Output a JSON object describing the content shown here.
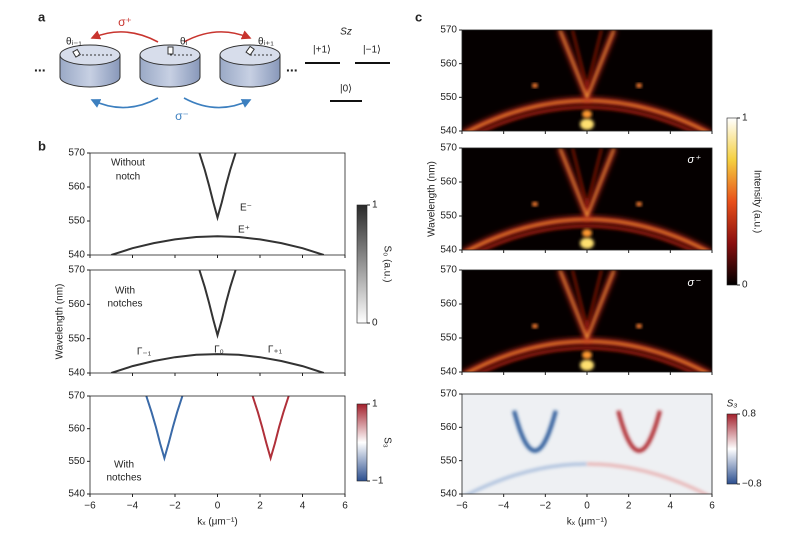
{
  "panels": [
    "a",
    "b",
    "c"
  ],
  "diagram": {
    "sigma_plus": "σ⁺",
    "sigma_minus": "σ⁻",
    "thetas": [
      "θᵢ₋₁",
      "θᵢ",
      "θᵢ₊₁"
    ],
    "ellipsis": "...",
    "sz": "Sz",
    "states": [
      "|+1⟩",
      "|−1⟩",
      "|0⟩"
    ]
  },
  "chart_data": [
    {
      "type": "line",
      "xlim": [
        -6,
        6
      ],
      "ylim": [
        540,
        570
      ],
      "xticks": [
        {
          "value": -6,
          "label": "−6"
        },
        {
          "value": -4,
          "label": "−4"
        },
        {
          "value": -2,
          "label": "−2"
        },
        0,
        2,
        4,
        6
      ],
      "yticks": [
        540,
        550,
        560,
        570
      ],
      "annotations": [
        "Without",
        "notch",
        "E⁻",
        "E⁺"
      ],
      "series": [
        {
          "color": "#333333",
          "x": [
            -0.85,
            -0.6,
            -0.4,
            -0.2,
            0,
            0.2,
            0.4,
            0.6,
            0.85
          ],
          "values": [
            570,
            565,
            560.5,
            555.5,
            551,
            555.5,
            560.5,
            565,
            570
          ]
        },
        {
          "color": "#333333",
          "x": [
            -5,
            -4,
            -3,
            -2,
            -1,
            0,
            1,
            2,
            3,
            4,
            5
          ],
          "values": [
            540,
            542,
            543.5,
            544.6,
            545.3,
            545.5,
            545.3,
            544.6,
            543.5,
            542,
            540
          ]
        }
      ],
      "colorbar": {
        "label": "S₀ (a.u.)",
        "ticks": [
          0,
          1
        ],
        "colors": [
          "#ffffff",
          "#2a2a2a"
        ]
      }
    },
    {
      "type": "line",
      "xlim": [
        -6,
        6
      ],
      "ylim": [
        540,
        570
      ],
      "xticks": [
        {
          "value": -6,
          "label": "−6"
        },
        {
          "value": -4,
          "label": "−4"
        },
        {
          "value": -2,
          "label": "−2"
        },
        0,
        2,
        4,
        6
      ],
      "yticks": [
        540,
        550,
        560,
        570
      ],
      "ylabel": "Wavelength (nm)",
      "annotations": [
        "With",
        "notches",
        "Γ₋₁",
        "Γ₀",
        "Γ₊₁"
      ],
      "series": [
        {
          "color": "#333333",
          "x": [
            -0.85,
            -0.6,
            -0.4,
            -0.2,
            0,
            0.2,
            0.4,
            0.6,
            0.85
          ],
          "values": [
            570,
            565,
            560.5,
            555.5,
            551,
            555.5,
            560.5,
            565,
            570
          ]
        },
        {
          "color": "#333333",
          "x": [
            -5,
            -4,
            -3,
            -2,
            -1,
            0,
            1,
            2,
            3,
            4,
            5
          ],
          "values": [
            540,
            542,
            543.5,
            544.6,
            545.3,
            545.5,
            545.3,
            544.6,
            543.5,
            542,
            540
          ]
        }
      ]
    },
    {
      "type": "line",
      "xlim": [
        -6,
        6
      ],
      "ylim": [
        540,
        570
      ],
      "xticks": [
        {
          "value": -6,
          "label": "−6"
        },
        {
          "value": -4,
          "label": "−4"
        },
        {
          "value": -2,
          "label": "−2"
        },
        0,
        2,
        4,
        6
      ],
      "yticks": [
        540,
        550,
        560,
        570
      ],
      "xlabel": "kₓ (μm⁻¹)",
      "annotations": [
        "With",
        "notches"
      ],
      "series": [
        {
          "color": "#3a6aa8",
          "x": [
            -3.35,
            -3.1,
            -2.9,
            -2.7,
            -2.5,
            -2.3,
            -2.1,
            -1.9,
            -1.65
          ],
          "values": [
            570,
            565,
            560.5,
            555.5,
            551,
            555.5,
            560.5,
            565,
            570
          ]
        },
        {
          "color": "#b0303a",
          "x": [
            1.65,
            1.9,
            2.1,
            2.3,
            2.5,
            2.7,
            2.9,
            3.1,
            3.35
          ],
          "values": [
            570,
            565,
            560.5,
            555.5,
            551,
            555.5,
            560.5,
            565,
            570
          ]
        }
      ],
      "colorbar": {
        "label": "S₃",
        "ticks": [
          {
            "value": -1,
            "label": "−1"
          },
          1
        ],
        "colors": [
          "#2c4f8f",
          "#ffffff",
          "#a3202c"
        ]
      }
    },
    {
      "type": "heatmap",
      "xlim": [
        -6,
        6
      ],
      "ylim": [
        540,
        570
      ],
      "xticks": [
        {
          "value": -6,
          "label": "−6"
        },
        {
          "value": -4,
          "label": "−4"
        },
        {
          "value": -2,
          "label": "−2"
        },
        0,
        2,
        4,
        6
      ],
      "yticks": [
        540,
        550,
        560,
        570
      ],
      "colorbar": {
        "label": "Intensity (a.u.)",
        "ticks": [
          0,
          1
        ],
        "colors": [
          "#000000",
          "#8a0f0f",
          "#e8501a",
          "#f5d040",
          "#ffffff"
        ]
      }
    },
    {
      "type": "heatmap",
      "xlim": [
        -6,
        6
      ],
      "ylim": [
        540,
        570
      ],
      "xticks": [
        {
          "value": -6,
          "label": "−6"
        },
        {
          "value": -4,
          "label": "−4"
        },
        {
          "value": -2,
          "label": "−2"
        },
        0,
        2,
        4,
        6
      ],
      "yticks": [
        540,
        550,
        560,
        570
      ],
      "ylabel": "Wavelength (nm)",
      "annotations": [
        "σ⁺"
      ]
    },
    {
      "type": "heatmap",
      "xlim": [
        -6,
        6
      ],
      "ylim": [
        540,
        570
      ],
      "xticks": [
        {
          "value": -6,
          "label": "−6"
        },
        {
          "value": -4,
          "label": "−4"
        },
        {
          "value": -2,
          "label": "−2"
        },
        0,
        2,
        4,
        6
      ],
      "yticks": [
        540,
        550,
        560,
        570
      ],
      "annotations": [
        "σ⁻"
      ]
    },
    {
      "type": "heatmap",
      "xlim": [
        -6,
        6
      ],
      "ylim": [
        540,
        570
      ],
      "xticks": [
        {
          "value": -6,
          "label": "−6"
        },
        {
          "value": -4,
          "label": "−4"
        },
        {
          "value": -2,
          "label": "−2"
        },
        0,
        2,
        4,
        6
      ],
      "yticks": [
        540,
        550,
        560,
        570
      ],
      "xlabel": "kₓ (μm⁻¹)",
      "colorbar": {
        "label": "S₃",
        "ticks": [
          {
            "value": -0.8,
            "label": "−0.8"
          },
          0.8
        ],
        "colors": [
          "#2c4f8f",
          "#ffffff",
          "#a3202c"
        ]
      }
    }
  ]
}
